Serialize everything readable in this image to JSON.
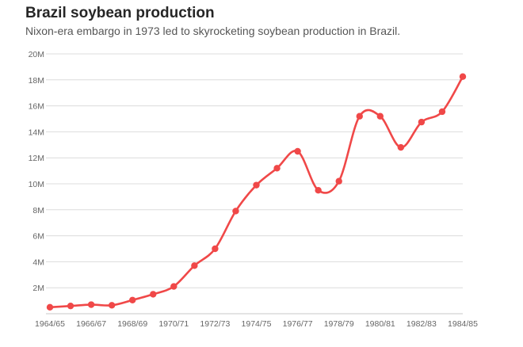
{
  "header": {
    "title": "Brazil soybean production",
    "subtitle": "Nixon-era embargo in 1973 led to skyrocketing soybean production in Brazil."
  },
  "colors": {
    "line": "#f04848",
    "grid": "#dcdcdc",
    "axis": "#c8c8c8",
    "tick_text": "#666666"
  },
  "chart_data": {
    "type": "line",
    "title": "Brazil soybean production",
    "subtitle": "Nixon-era embargo in 1973 led to skyrocketing soybean production in Brazil.",
    "xlabel": "",
    "ylabel": "",
    "ylim": [
      0,
      20000000
    ],
    "grid": true,
    "legend": "none",
    "x": [
      "1964/65",
      "1965/66",
      "1966/67",
      "1967/68",
      "1968/69",
      "1969/70",
      "1970/71",
      "1971/72",
      "1972/73",
      "1973/74",
      "1974/75",
      "1975/76",
      "1976/77",
      "1977/78",
      "1978/79",
      "1979/80",
      "1980/81",
      "1981/82",
      "1982/83",
      "1983/84",
      "1984/85"
    ],
    "x_tick_labels": [
      "1964/65",
      "1966/67",
      "1968/69",
      "1970/71",
      "1972/73",
      "1974/75",
      "1976/77",
      "1978/79",
      "1980/81",
      "1982/83",
      "1984/85"
    ],
    "y_ticks": [
      2000000,
      4000000,
      6000000,
      8000000,
      10000000,
      12000000,
      14000000,
      16000000,
      18000000,
      20000000
    ],
    "y_tick_labels": [
      "2M",
      "4M",
      "6M",
      "8M",
      "10M",
      "12M",
      "14M",
      "16M",
      "18M",
      "20M"
    ],
    "series": [
      {
        "name": "Soybean production",
        "values": [
          500000,
          600000,
          700000,
          650000,
          1050000,
          1500000,
          2100000,
          3700000,
          5000000,
          7900000,
          9900000,
          11200000,
          12500000,
          9500000,
          10200000,
          15200000,
          15200000,
          12800000,
          14750000,
          15550000,
          18250000
        ]
      }
    ]
  }
}
